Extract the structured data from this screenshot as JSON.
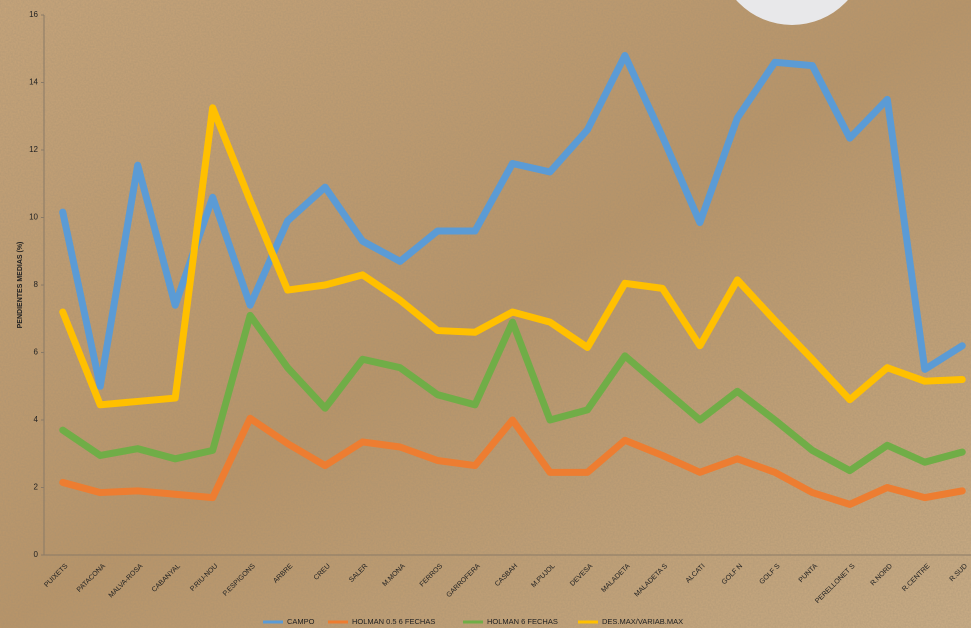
{
  "chart_data": {
    "type": "line",
    "y_label": "PENDIENTES MEDIAS (%)",
    "categories": [
      "PUIXETS",
      "PATACONA",
      "MALVA-ROSA",
      "CABANYAL",
      "P.RIU-NOU",
      "P.ESPIGONS",
      "ARBRE",
      "CREU",
      "SALER",
      "M.MONA",
      "FERROS",
      "GARROFERA",
      "CASBAH",
      "M.PUJOL",
      "DEVESA",
      "MALADETA",
      "MALADETA S",
      "ALCATI",
      "GOLF N",
      "GOLF S",
      "PUNTA",
      "PERELLONET S",
      "R.NORD",
      "R.CENTRE",
      "R.SUD"
    ],
    "series": [
      {
        "name": "CAMPO",
        "color": "#5b9bd5",
        "values": [
          10.16,
          5.0,
          11.55,
          7.4,
          10.6,
          7.4,
          9.9,
          10.9,
          9.3,
          8.7,
          9.6,
          9.6,
          11.6,
          11.35,
          12.6,
          14.8,
          12.4,
          9.85,
          12.95,
          14.6,
          14.5,
          12.35,
          13.5,
          5.5,
          6.2
        ]
      },
      {
        "name": "HOLMAN 0.5 6 FECHAS",
        "color": "#ed7d31",
        "values": [
          2.15,
          1.85,
          1.9,
          1.8,
          1.7,
          4.05,
          3.3,
          2.65,
          3.35,
          3.2,
          2.8,
          2.65,
          4.0,
          2.45,
          2.45,
          3.4,
          2.95,
          2.45,
          2.85,
          2.45,
          1.85,
          1.5,
          2.0,
          1.7,
          1.9
        ]
      },
      {
        "name": "HOLMAN 6 FECHAS",
        "color": "#70ad47",
        "values": [
          3.7,
          2.95,
          3.15,
          2.85,
          3.1,
          7.1,
          5.55,
          4.35,
          5.8,
          5.55,
          4.75,
          4.45,
          6.9,
          4.0,
          4.3,
          5.9,
          4.95,
          4.0,
          4.85,
          4.0,
          3.1,
          2.5,
          3.25,
          2.75,
          3.05
        ]
      },
      {
        "name": "DES.MAX/VARIAB.MAX",
        "color": "#ffc000",
        "values": [
          7.2,
          4.45,
          4.55,
          4.65,
          13.25,
          10.5,
          7.85,
          8.0,
          8.3,
          7.55,
          6.65,
          6.6,
          7.2,
          6.9,
          6.15,
          8.05,
          7.9,
          6.2,
          8.15,
          6.95,
          5.8,
          4.6,
          5.55,
          5.15,
          5.2
        ]
      }
    ],
    "ylim": [
      0,
      16
    ],
    "yticks": [
      0,
      2,
      4,
      6,
      8,
      10,
      12,
      14,
      16
    ],
    "grid": false,
    "legend": "bottom"
  }
}
